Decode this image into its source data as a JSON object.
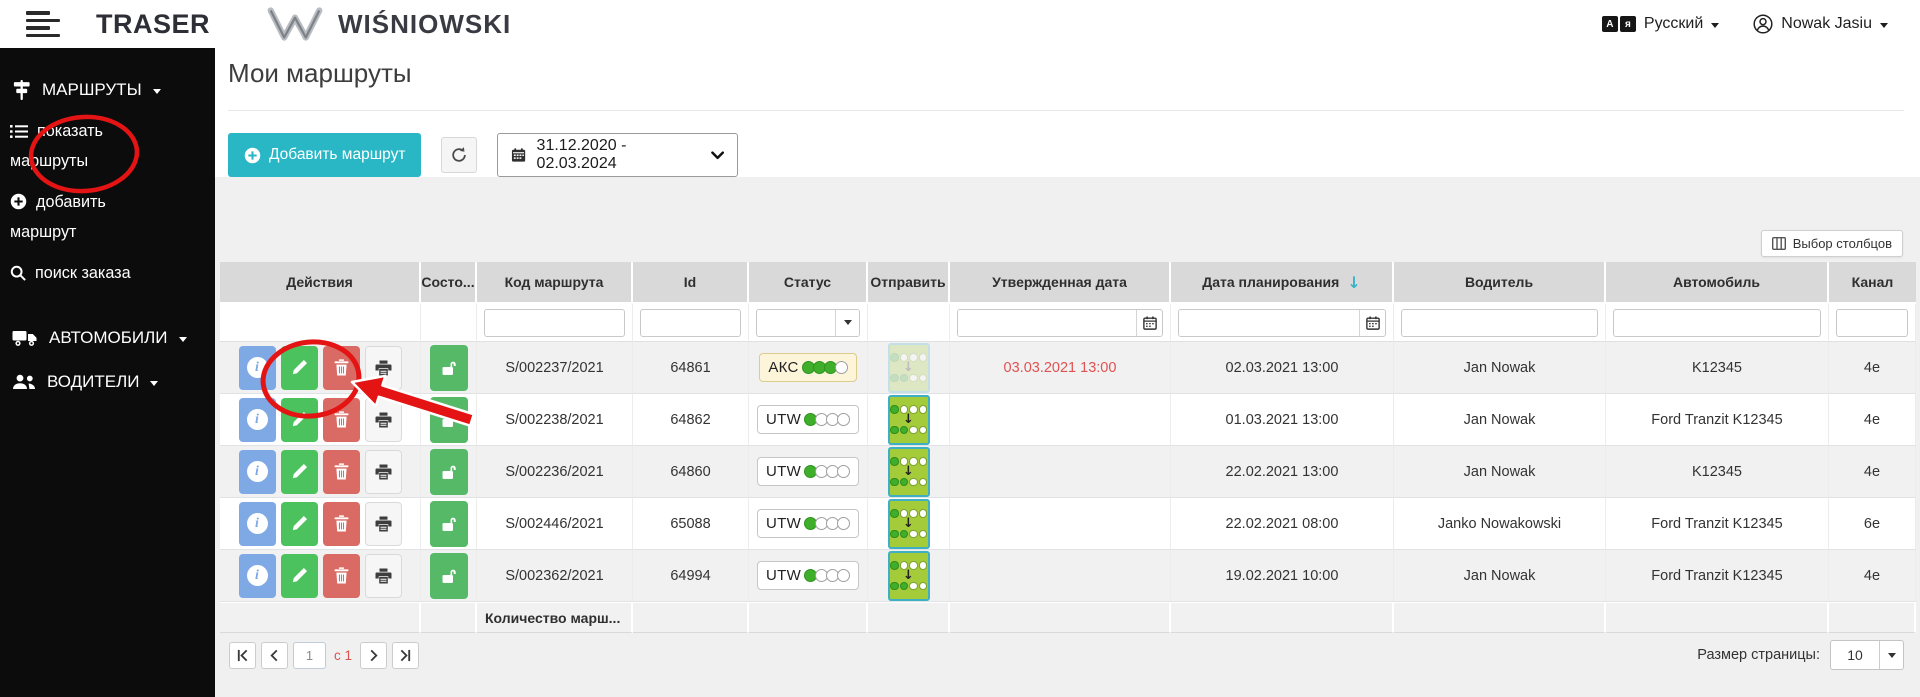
{
  "topbar": {
    "app_name": "TRASER",
    "brand": "WIŚNIOWSKI",
    "language_label": "Русский",
    "user_name": "Nowak Jasiu"
  },
  "sidebar": {
    "routes_label": "МАРШРУТЫ",
    "show_routes_label": "показать маршруты",
    "add_route_label": "добавить маршрут",
    "search_order_label": "поиск заказа",
    "vehicles_label": "АВТОМОБИЛИ",
    "drivers_label": "ВОДИТЕЛИ"
  },
  "page": {
    "title": "Мои маршруты"
  },
  "toolbar": {
    "add_route_label": "Добавить маршрут",
    "date_range": "31.12.2020 - 02.03.2024"
  },
  "table": {
    "column_chooser_label": "Выбор столбцов",
    "headers": [
      "Действия",
      "Состо...",
      "Код маршрута",
      "Id",
      "Статус",
      "Отправить",
      "Утвержденная дата",
      "Дата планирования",
      "Водитель",
      "Автомобиль",
      "Канал"
    ],
    "sorted_column": "Дата планирования",
    "sort_indicator": "↓",
    "status_dots_total": 4,
    "rows": [
      {
        "code": "S/002237/2021",
        "id": "64861",
        "status": "АКС",
        "status_filled": 3,
        "status_variant": "warning",
        "send_enabled": false,
        "approved_date": "03.03.2021 13:00",
        "approved_overdue": true,
        "planning_date": "02.03.2021 13:00",
        "driver": "Jan Nowak",
        "vehicle": "K12345",
        "channel": "4e"
      },
      {
        "code": "S/002238/2021",
        "id": "64862",
        "status": "UTW",
        "status_filled": 1,
        "status_variant": "plain",
        "send_enabled": true,
        "approved_date": "",
        "approved_overdue": false,
        "planning_date": "01.03.2021 13:00",
        "driver": "Jan Nowak",
        "vehicle": "Ford Tranzit K12345",
        "channel": "4e"
      },
      {
        "code": "S/002236/2021",
        "id": "64860",
        "status": "UTW",
        "status_filled": 1,
        "status_variant": "plain",
        "send_enabled": true,
        "approved_date": "",
        "approved_overdue": false,
        "planning_date": "22.02.2021 13:00",
        "driver": "Jan Nowak",
        "vehicle": "K12345",
        "channel": "4e"
      },
      {
        "code": "S/002446/2021",
        "id": "65088",
        "status": "UTW",
        "status_filled": 1,
        "status_variant": "plain",
        "send_enabled": true,
        "approved_date": "",
        "approved_overdue": false,
        "planning_date": "22.02.2021 08:00",
        "driver": "Janko Nowakowski",
        "vehicle": "Ford Tranzit K12345",
        "channel": "6e"
      },
      {
        "code": "S/002362/2021",
        "id": "64994",
        "status": "UTW",
        "status_filled": 1,
        "status_variant": "plain",
        "send_enabled": true,
        "approved_date": "",
        "approved_overdue": false,
        "planning_date": "19.02.2021 10:00",
        "driver": "Jan Nowak",
        "vehicle": "Ford Tranzit K12345",
        "channel": "4e"
      }
    ],
    "footer_label": "Количество марш..."
  },
  "pagination": {
    "page": "1",
    "of_label": "с 1",
    "page_size_label": "Размер страницы:",
    "page_size": "10"
  },
  "colors": {
    "accent_teal": "#29b6c5",
    "annotation_red": "#e51414",
    "status_green": "#3fae2a",
    "send_green": "#a4cb3a",
    "warning_badge_bg": "#fcf5d9",
    "danger_text": "#e05252"
  }
}
